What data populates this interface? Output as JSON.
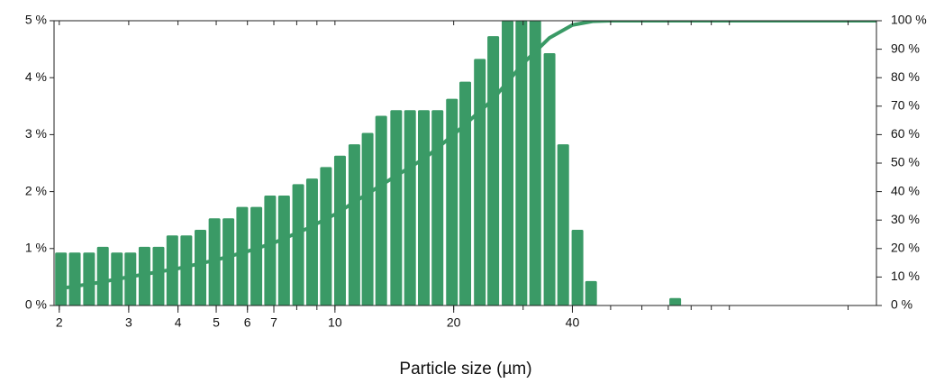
{
  "chart_data": {
    "type": "bar",
    "x_label": "Particle size (µm)",
    "xscale": "log",
    "xlim": [
      1.94,
      236
    ],
    "xticks": [
      2,
      3,
      4,
      5,
      6,
      7,
      10,
      20,
      40
    ],
    "xminorticks": [
      2,
      3,
      4,
      5,
      6,
      7,
      8,
      9,
      10,
      20,
      30,
      40,
      50,
      60,
      70,
      80,
      90,
      100,
      200
    ],
    "ylim": [
      0,
      5
    ],
    "yticks": [
      {
        "value": 0,
        "label": "0 %"
      },
      {
        "value": 1,
        "label": "1 %"
      },
      {
        "value": 2,
        "label": "2 %"
      },
      {
        "value": 3,
        "label": "3 %"
      },
      {
        "value": 4,
        "label": "4 %"
      },
      {
        "value": 5,
        "label": "5 %"
      }
    ],
    "y2lim": [
      0,
      100
    ],
    "y2ticks": [
      {
        "value": 0,
        "label": "0 %"
      },
      {
        "value": 10,
        "label": "10 %"
      },
      {
        "value": 20,
        "label": "20 %"
      },
      {
        "value": 30,
        "label": "30 %"
      },
      {
        "value": 40,
        "label": "40 %"
      },
      {
        "value": 50,
        "label": "50 %"
      },
      {
        "value": 60,
        "label": "60 %"
      },
      {
        "value": 70,
        "label": "70 %"
      },
      {
        "value": 80,
        "label": "80 %"
      },
      {
        "value": 90,
        "label": "90 %"
      },
      {
        "value": 100,
        "label": "100 %"
      }
    ],
    "series": [
      {
        "type": "bar",
        "color": "#3a9a66",
        "x": [
          2.02,
          2.19,
          2.38,
          2.58,
          2.8,
          3.03,
          3.29,
          3.57,
          3.87,
          4.2,
          4.56,
          4.95,
          5.37,
          5.82,
          6.32,
          6.85,
          7.43,
          8.07,
          8.75,
          9.49,
          10.3,
          11.2,
          12.1,
          13.1,
          14.3,
          15.5,
          16.8,
          18.2,
          19.8,
          21.4,
          23.3,
          25.2,
          27.4,
          29.7,
          32.2,
          35.0,
          37.9,
          41.2,
          44.6,
          72.9
        ],
        "values": [
          0.93,
          0.93,
          0.93,
          1.03,
          0.93,
          0.93,
          1.03,
          1.03,
          1.23,
          1.23,
          1.33,
          1.53,
          1.53,
          1.73,
          1.73,
          1.93,
          1.93,
          2.13,
          2.23,
          2.43,
          2.63,
          2.83,
          3.03,
          3.33,
          3.43,
          3.43,
          3.43,
          3.43,
          3.63,
          3.93,
          4.33,
          4.73,
          5,
          5,
          5,
          4.43,
          2.83,
          1.33,
          0.43,
          0.13
        ]
      },
      {
        "type": "line",
        "axis": "y2",
        "color": "#3a9a66",
        "x": [
          2.02,
          2.5,
          3,
          4,
          5,
          6,
          7,
          8.5,
          10,
          13,
          17,
          20,
          25,
          30,
          35,
          40,
          45,
          50,
          100,
          236
        ],
        "values": [
          6,
          8,
          10,
          13,
          16,
          19,
          22,
          27,
          32,
          42,
          52,
          60,
          72,
          85,
          94,
          98.5,
          99.8,
          100,
          100,
          100
        ]
      }
    ]
  }
}
